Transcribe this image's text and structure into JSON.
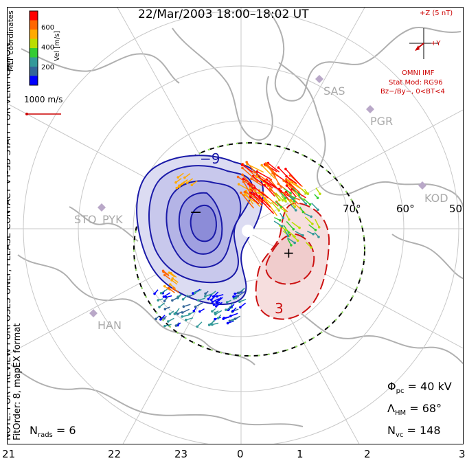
{
  "title": "22/Mar/2003 18:00–18:02 UT",
  "side_notes": {
    "coords": "MLT coordinates",
    "preview": "NOTE: FOR PREVIEW PURPOSES ONLY, PLEASE CONTACT VT-SD STAFF FOR VERIFICATION.",
    "fit": "FitOrder: 8, mapEX format"
  },
  "colorbar": {
    "label": "Vel [m/s]",
    "ticks": [
      "600",
      "400",
      "200"
    ],
    "colors": [
      "#ff0000",
      "#ff6600",
      "#ffaa00",
      "#bbdd00",
      "#33cc33",
      "#339999",
      "#336699",
      "#0000ff"
    ]
  },
  "ref_vector": {
    "label": "1000 m/s"
  },
  "imf": {
    "z_label": "+Z (5 nT)",
    "y_label": "+Y",
    "source": "OMNI IMF",
    "model": "Stat Mod: RG96",
    "condition": "Bz−/By−, 0<BT<4"
  },
  "stations": [
    "SAS",
    "PGR",
    "KOD",
    "STO",
    "PYK",
    "HAN"
  ],
  "latitudes": [
    "70°",
    "60°",
    "50°"
  ],
  "contours": {
    "neg_label": "−9",
    "pos_label": "3",
    "neg_sign": "−",
    "pos_sign": "+"
  },
  "stats": {
    "phi_pc": {
      "symbol": "Φ",
      "sub": "pc",
      "value": "= 40 kV"
    },
    "lambda_hm": {
      "symbol": "Λ",
      "sub": "HM",
      "value": "= 68°"
    },
    "n_vc": {
      "symbol": "N",
      "sub": "vc",
      "value": "= 148"
    },
    "n_rads": {
      "symbol": "N",
      "sub": "rads",
      "value": "= 6"
    }
  },
  "mlt_axis": [
    "21",
    "22",
    "23",
    "0",
    "1",
    "2",
    "3"
  ]
}
